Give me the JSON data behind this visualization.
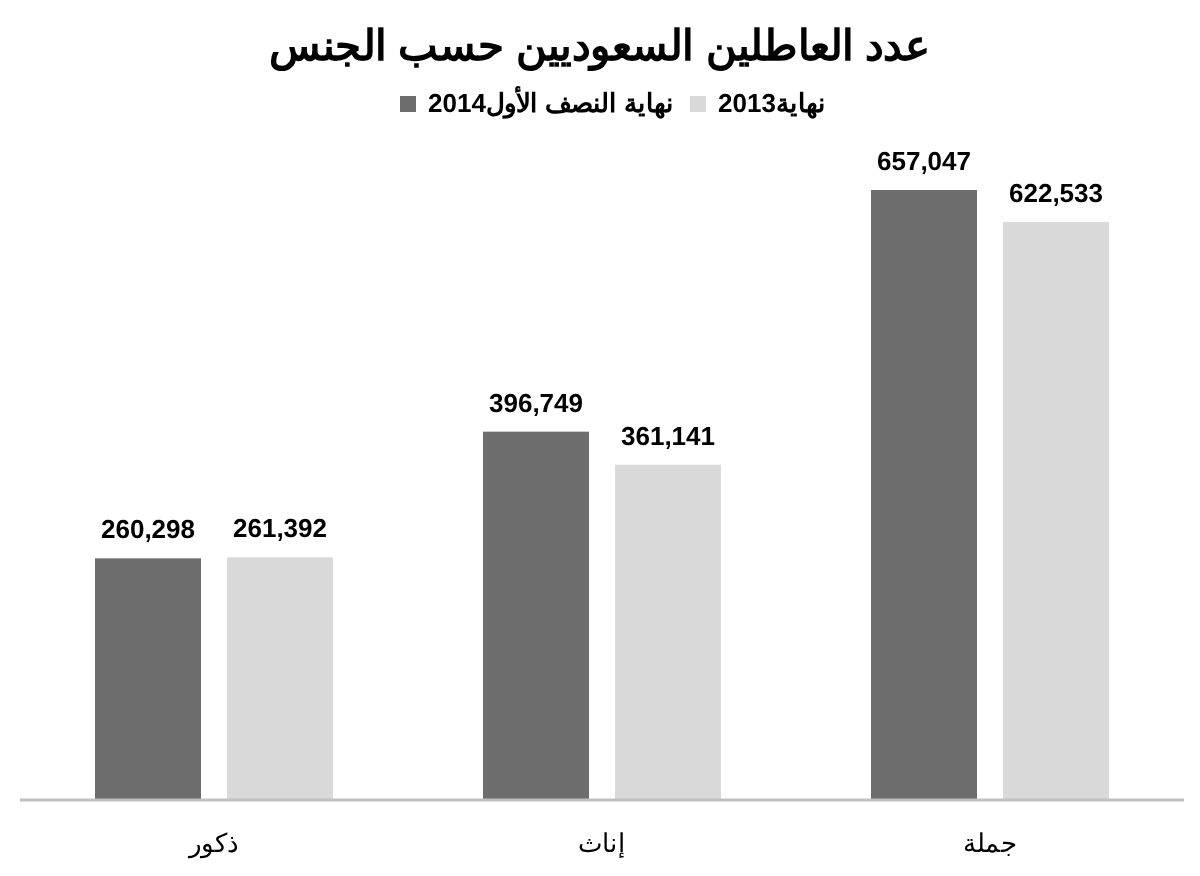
{
  "chart_data": {
    "type": "bar",
    "title": "عدد العاطلين السعوديين حسب الجنس",
    "categories": [
      "ذكور",
      "إناث",
      "جملة"
    ],
    "series": [
      {
        "name": "2014نهاية النصف الأول",
        "color": "#6d6d6d",
        "values": [
          260298,
          396749,
          657047
        ],
        "value_labels": [
          "260,298",
          "396,749",
          "657,047"
        ]
      },
      {
        "name": "2013نهاية",
        "color": "#d9d9d9",
        "values": [
          261392,
          361141,
          622533
        ],
        "value_labels": [
          "261,392",
          "361,141",
          "622,533"
        ]
      }
    ],
    "legend": "top"
  }
}
